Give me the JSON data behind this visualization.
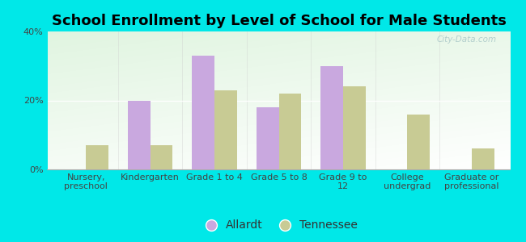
{
  "title": "School Enrollment by Level of School for Male Students",
  "categories": [
    "Nursery,\npreschool",
    "Kindergarten",
    "Grade 1 to 4",
    "Grade 5 to 8",
    "Grade 9 to\n12",
    "College\nundergrad",
    "Graduate or\nprofessional"
  ],
  "allardt_values": [
    0,
    20,
    33,
    18,
    30,
    0,
    0
  ],
  "tennessee_values": [
    7,
    7,
    23,
    22,
    24,
    16,
    6
  ],
  "allardt_color": "#c9a8df",
  "tennessee_color": "#c8cb94",
  "background_color": "#00e8e8",
  "ylim": [
    0,
    40
  ],
  "yticks": [
    0,
    20,
    40
  ],
  "ytick_labels": [
    "0%",
    "20%",
    "40%"
  ],
  "legend_labels": [
    "Allardt",
    "Tennessee"
  ],
  "title_fontsize": 13,
  "tick_fontsize": 8,
  "legend_fontsize": 10,
  "bar_width": 0.35,
  "watermark": "City-Data.com"
}
